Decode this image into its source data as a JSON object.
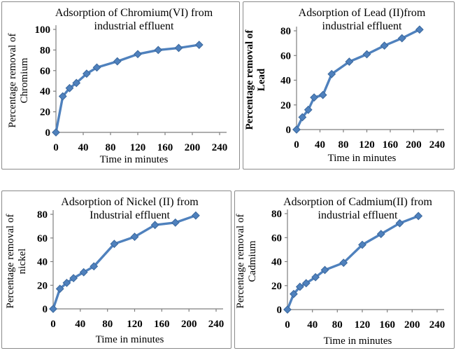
{
  "app": {
    "kind": "figure-grid-2x2",
    "background": "#ffffff",
    "panel_border_color": "#8a8a8a",
    "accent": "#4F81BD"
  },
  "chart_data": [
    {
      "id": "chromium",
      "type": "line",
      "title": "Adsorption of Chromium(VI) from industrial effluent",
      "title_lines": [
        "Adsorption of Chromium(VI) from",
        "industrial effluent"
      ],
      "xlabel": "Time in minutes",
      "ylabel": "Percentage removal of Chromium",
      "ylabel_lines": [
        "Percentage removal of",
        "Chromium"
      ],
      "ylabel_bold": false,
      "x": [
        0,
        10,
        20,
        30,
        45,
        60,
        90,
        120,
        150,
        180,
        210
      ],
      "y": [
        0,
        35,
        43,
        48,
        57,
        63,
        69,
        76,
        80,
        82,
        85
      ],
      "xlim": [
        0,
        240
      ],
      "ylim": [
        0,
        100
      ],
      "xticks": [
        0,
        40,
        80,
        120,
        160,
        200,
        240
      ],
      "yticks": [
        0,
        20,
        40,
        60,
        80,
        100
      ],
      "line_color": "#4F81BD",
      "marker": "diamond",
      "marker_edge": "#3A679C",
      "legend": "none",
      "grid": "off"
    },
    {
      "id": "lead",
      "type": "line",
      "title": "Adsorption of Lead (II)from industrial effluent",
      "title_lines": [
        "Adsorption of Lead (II)from",
        "industrial effluent"
      ],
      "xlabel": "Time in minutes",
      "ylabel": "Percentage removal of Lead",
      "ylabel_lines": [
        "Percentage removal of",
        "Lead"
      ],
      "ylabel_bold": true,
      "x": [
        0,
        10,
        20,
        30,
        45,
        60,
        90,
        120,
        150,
        180,
        210
      ],
      "y": [
        0,
        10,
        16,
        26,
        28,
        45,
        55,
        61,
        68,
        74,
        81
      ],
      "xlim": [
        0,
        240
      ],
      "ylim": [
        0,
        80
      ],
      "xticks": [
        0,
        40,
        80,
        120,
        160,
        200,
        240
      ],
      "yticks": [
        0,
        20,
        40,
        60,
        80
      ],
      "line_color": "#4F81BD",
      "marker": "diamond",
      "marker_edge": "#3A679C",
      "legend": "none",
      "grid": "off"
    },
    {
      "id": "nickel",
      "type": "line",
      "title": "Adsorption of Nickel (II) from Industrial effluent",
      "title_lines": [
        "Adsorption of Nickel (II) from",
        "Industrial effluent"
      ],
      "xlabel": "Time in minutes",
      "ylabel": "Percentage removal of nickel",
      "ylabel_lines": [
        "Percentage removal of",
        "nickel"
      ],
      "ylabel_bold": false,
      "x": [
        0,
        10,
        20,
        30,
        45,
        60,
        90,
        120,
        150,
        180,
        210
      ],
      "y": [
        0,
        17,
        22,
        26,
        31,
        36,
        55,
        61,
        71,
        73,
        79
      ],
      "xlim": [
        0,
        240
      ],
      "ylim": [
        0,
        80
      ],
      "xticks": [
        0,
        40,
        80,
        120,
        160,
        200,
        240
      ],
      "yticks": [
        0,
        20,
        40,
        60,
        80
      ],
      "line_color": "#4F81BD",
      "marker": "diamond",
      "marker_edge": "#3A679C",
      "legend": "none",
      "grid": "off"
    },
    {
      "id": "cadmium",
      "type": "line",
      "title": "Adsorption of Cadmium(II) from industrial effluent",
      "title_lines": [
        "Adsorption of Cadmium(II) from",
        "industrial effluent"
      ],
      "xlabel": "Time in minutes",
      "ylabel": "Percentage removal of Cadmium",
      "ylabel_lines": [
        "Percentage removal of",
        "Cadmium"
      ],
      "ylabel_bold": false,
      "x": [
        0,
        10,
        20,
        30,
        45,
        60,
        90,
        120,
        150,
        180,
        210
      ],
      "y": [
        0,
        13,
        19,
        22,
        27,
        33,
        39,
        54,
        63,
        72,
        78
      ],
      "xlim": [
        0,
        240
      ],
      "ylim": [
        0,
        80
      ],
      "xticks": [
        0,
        40,
        80,
        120,
        160,
        200,
        240
      ],
      "yticks": [
        0,
        20,
        40,
        60,
        80
      ],
      "line_color": "#4F81BD",
      "marker": "diamond",
      "marker_edge": "#3A679C",
      "legend": "none",
      "grid": "off"
    }
  ]
}
